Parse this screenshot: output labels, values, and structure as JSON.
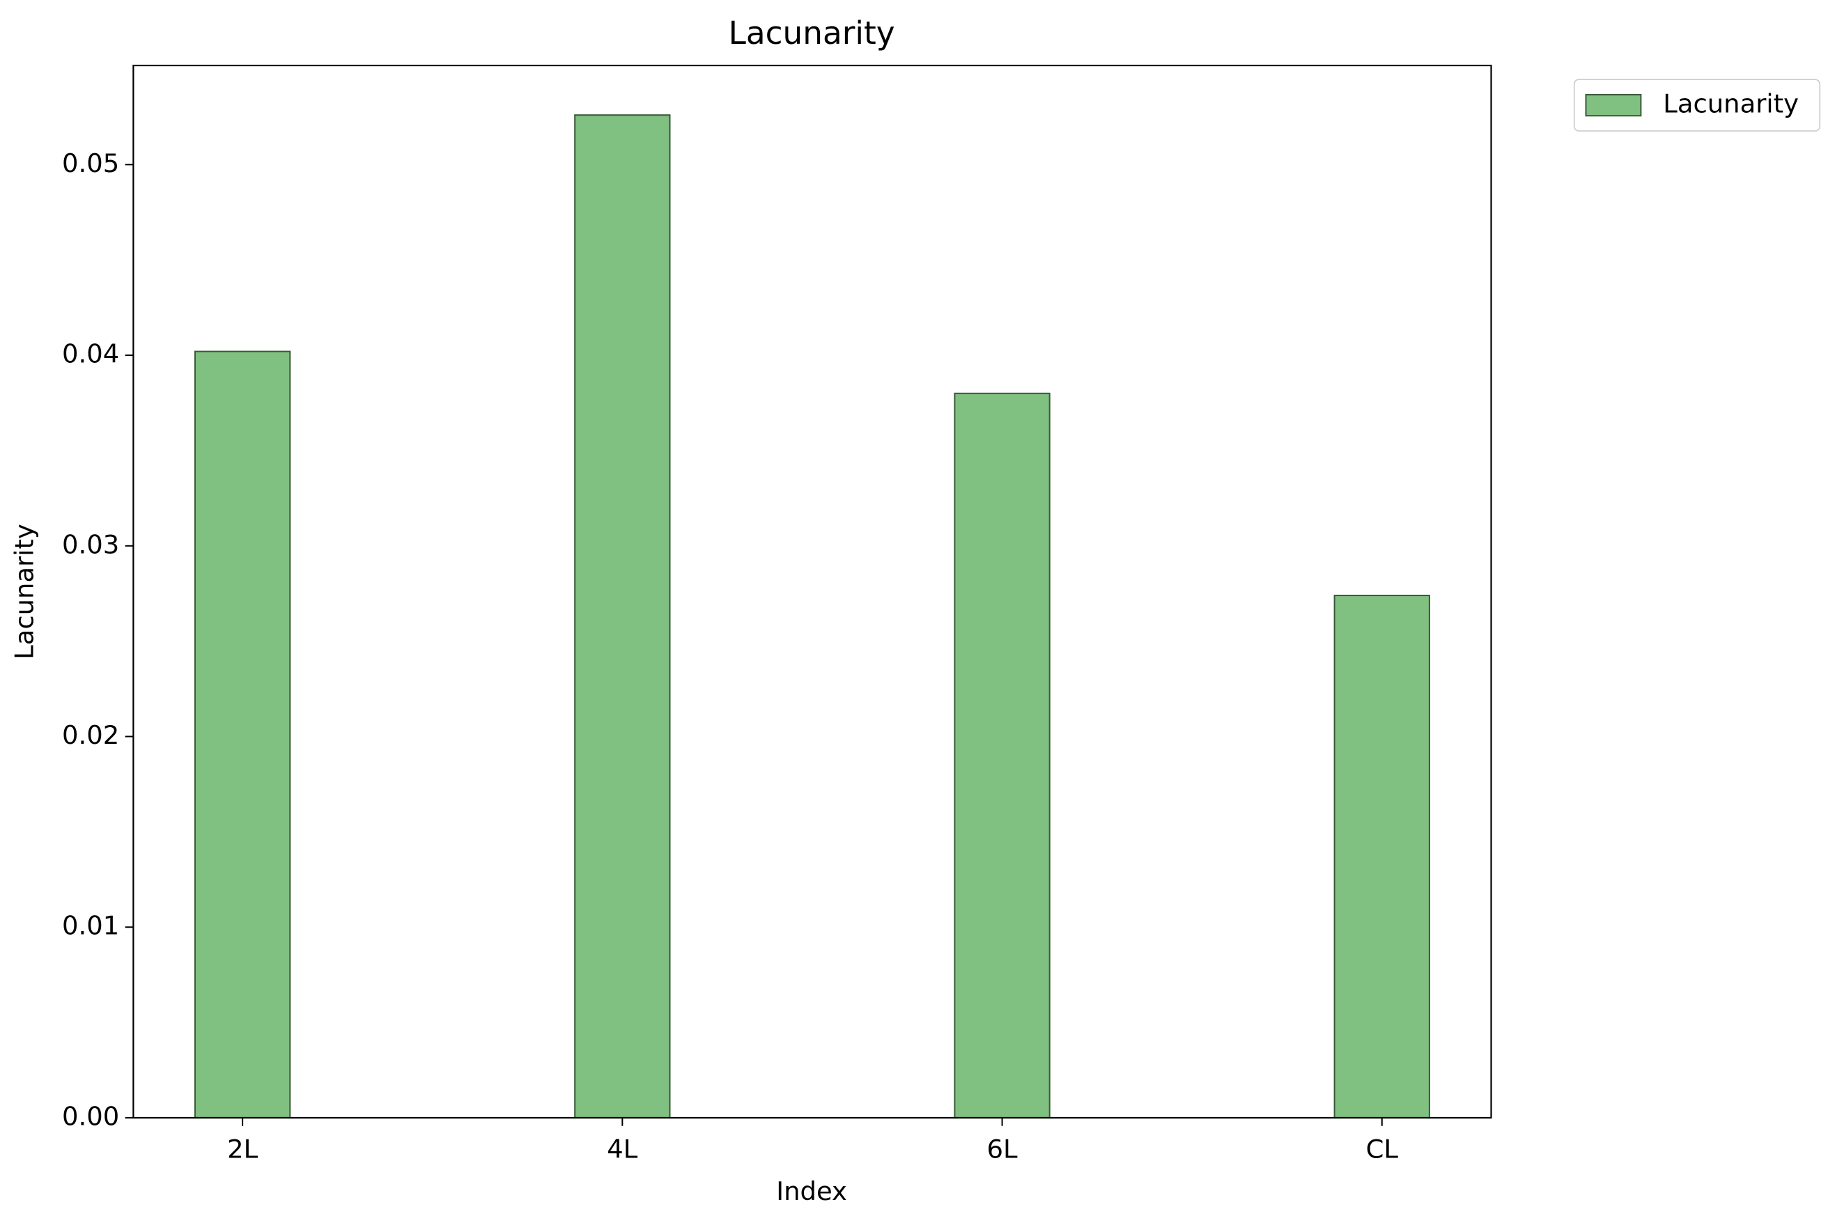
{
  "chart_data": {
    "type": "bar",
    "title": "Lacunarity",
    "x_label": "Index",
    "y_label": "Lacunarity",
    "categories": [
      "2L",
      "4L",
      "6L",
      "CL"
    ],
    "series": [
      {
        "name": "Lacunarity",
        "color": "#80c080",
        "values": [
          0.0402,
          0.0526,
          0.038,
          0.0274
        ]
      }
    ],
    "ylim": [
      0,
      0.0552
    ],
    "yticks": [
      {
        "value": 0,
        "label": "0.00"
      },
      0.01,
      0.02,
      0.03,
      0.04,
      0.05
    ],
    "grid": false
  }
}
